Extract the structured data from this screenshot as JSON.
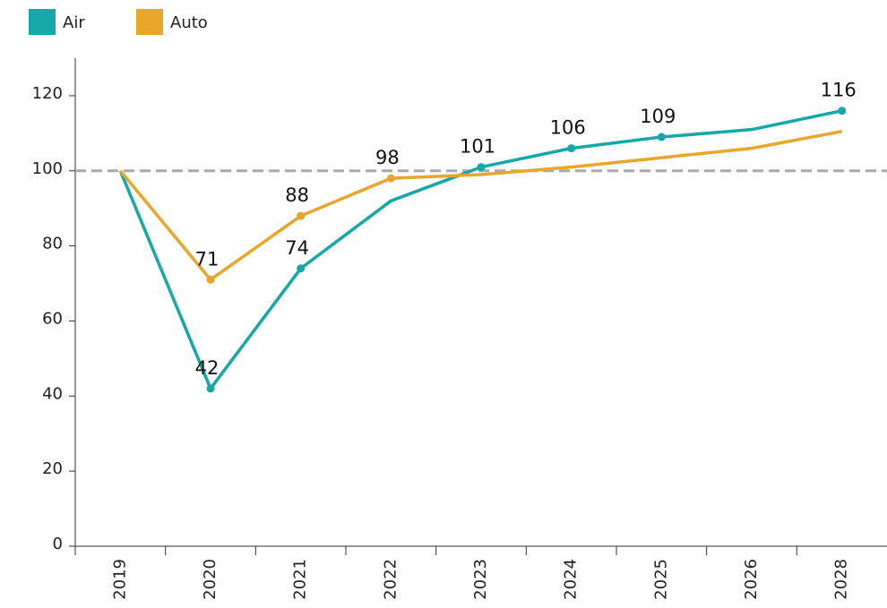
{
  "chart_data": {
    "type": "line",
    "categories": [
      "2019",
      "2020",
      "2021",
      "2022",
      "2023",
      "2024",
      "2025",
      "2026",
      "2028"
    ],
    "series": [
      {
        "name": "Air",
        "color": "#14a8a8",
        "values": [
          100,
          42,
          74,
          92,
          101,
          106,
          109,
          111,
          116
        ],
        "value_labels": [
          null,
          "42",
          "74",
          null,
          "101",
          "106",
          "109",
          null,
          "116"
        ]
      },
      {
        "name": "Auto",
        "color": "#e8a62a",
        "values": [
          100,
          71,
          88,
          98,
          99,
          101,
          103.5,
          106,
          110.5
        ],
        "value_labels": [
          null,
          "71",
          "88",
          "98",
          null,
          null,
          null,
          null,
          null
        ]
      }
    ],
    "ylim": [
      0,
      130
    ],
    "yticks": [
      0,
      20,
      40,
      60,
      80,
      100,
      120
    ],
    "reference_line": {
      "value": 100,
      "color": "#aaaaaa",
      "dashed": true
    },
    "legend": "top-left"
  }
}
